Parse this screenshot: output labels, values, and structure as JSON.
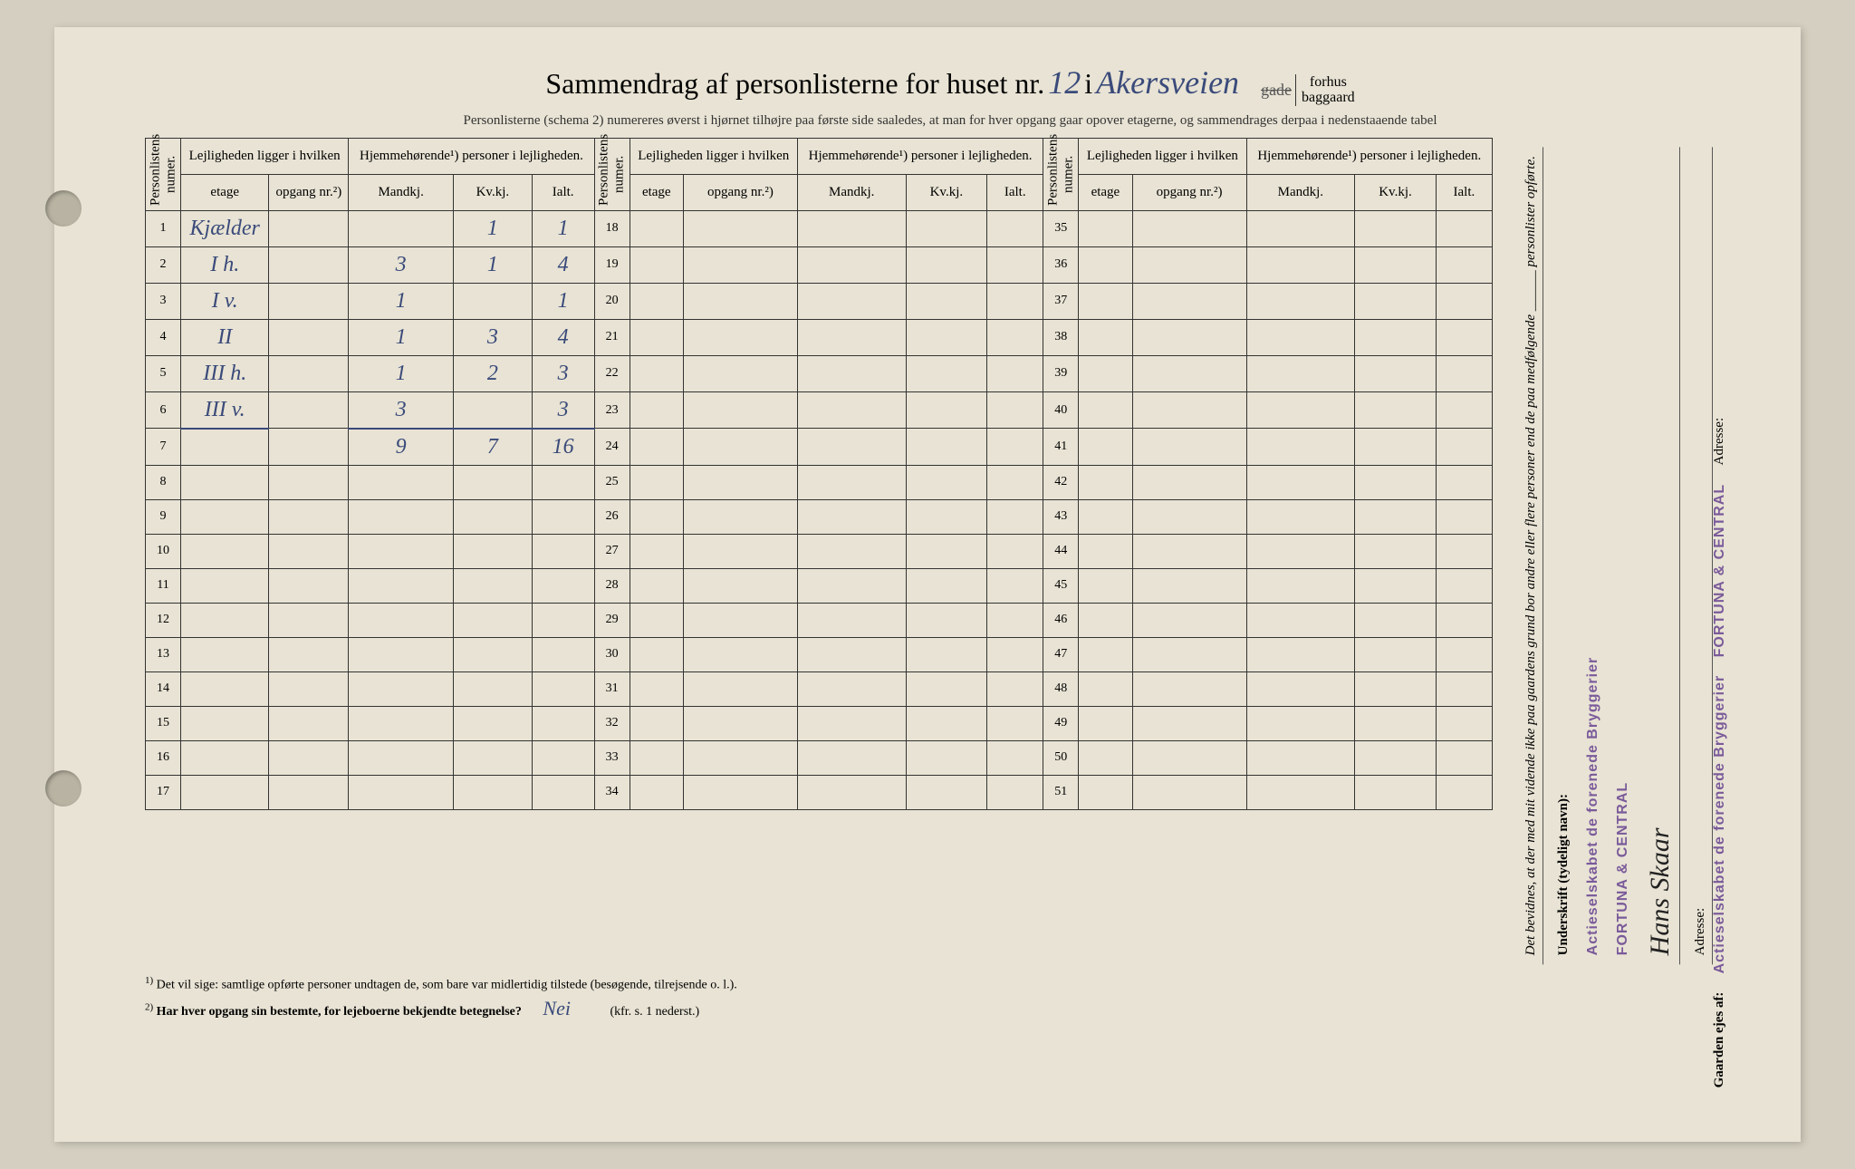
{
  "title": {
    "prefix": "Sammendrag af personlisterne for huset nr.",
    "house_number": "12",
    "i": "i",
    "street_name": "Akersveien",
    "gade": "gade",
    "forhus": "forhus",
    "baggaard": "baggaard"
  },
  "subtitle": "Personlisterne (schema 2) numereres øverst i hjørnet tilhøjre paa første side saaledes, at man for hver opgang gaar opover etagerne, og sammendrages derpaa i nedenstaaende tabel",
  "headers": {
    "personlistens_numer": "Personlistens numer.",
    "lejligheden_ligger": "Lejligheden ligger i hvilken",
    "hjemmehorende": "Hjemmehørende¹) personer i lejligheden.",
    "etage": "etage",
    "opgang": "opgang nr.²)",
    "mandkj": "Mandkj.",
    "kvkj": "Kv.kj.",
    "ialt": "Ialt."
  },
  "rows": [
    {
      "num": "1",
      "etage": "Kjælder",
      "opgang": "",
      "mandkj": "",
      "kvkj": "1",
      "ialt": "1"
    },
    {
      "num": "2",
      "etage": "I h.",
      "opgang": "",
      "mandkj": "3",
      "kvkj": "1",
      "ialt": "4"
    },
    {
      "num": "3",
      "etage": "I v.",
      "opgang": "",
      "mandkj": "1",
      "kvkj": "",
      "ialt": "1"
    },
    {
      "num": "4",
      "etage": "II",
      "opgang": "",
      "mandkj": "1",
      "kvkj": "3",
      "ialt": "4"
    },
    {
      "num": "5",
      "etage": "III h.",
      "opgang": "",
      "mandkj": "1",
      "kvkj": "2",
      "ialt": "3"
    },
    {
      "num": "6",
      "etage": "III v.",
      "opgang": "",
      "mandkj": "3",
      "kvkj": "",
      "ialt": "3"
    },
    {
      "num": "7",
      "etage": "",
      "opgang": "",
      "mandkj": "9",
      "kvkj": "7",
      "ialt": "16"
    }
  ],
  "empty_rows_col1": [
    "8",
    "9",
    "10",
    "11",
    "12",
    "13",
    "14",
    "15",
    "16",
    "17"
  ],
  "empty_rows_col2": [
    "18",
    "19",
    "20",
    "21",
    "22",
    "23",
    "24",
    "25",
    "26",
    "27",
    "28",
    "29",
    "30",
    "31",
    "32",
    "33",
    "34"
  ],
  "empty_rows_col3": [
    "35",
    "36",
    "37",
    "38",
    "39",
    "40",
    "41",
    "42",
    "43",
    "44",
    "45",
    "46",
    "47",
    "48",
    "49",
    "50",
    "51"
  ],
  "sidebar": {
    "attestation": "Det bevidnes, at der med mit vidende ikke paa gaardens grund bor andre eller flere personer end de paa medfølgende ______ personlister opførte.",
    "underskrift_label": "Underskrift (tydeligt navn):",
    "stamp_line1": "Actieselskabet de forenede Bryggerier",
    "stamp_line2": "FORTUNA & CENTRAL",
    "signature": "Hans Skaar",
    "adresse_label": "Adresse:"
  },
  "footnotes": {
    "note1": "Det vil sige: samtlige opførte personer undtagen de, som bare var midlertidig tilstede (besøgende, tilrejsende o. l.).",
    "note2": "Har hver opgang sin bestemte, for lejeboerne bekjendte betegnelse?",
    "note2_answer": "Nei",
    "note2_ref": "(kfr. s. 1 nederst.)"
  },
  "bottom_sidebar": {
    "owner_label": "Gaarden ejes af:",
    "stamp_line1": "Actieselskabet de forenede Bryggerier",
    "stamp_line2": "FORTUNA & CENTRAL",
    "adresse_label": "Adresse:"
  }
}
